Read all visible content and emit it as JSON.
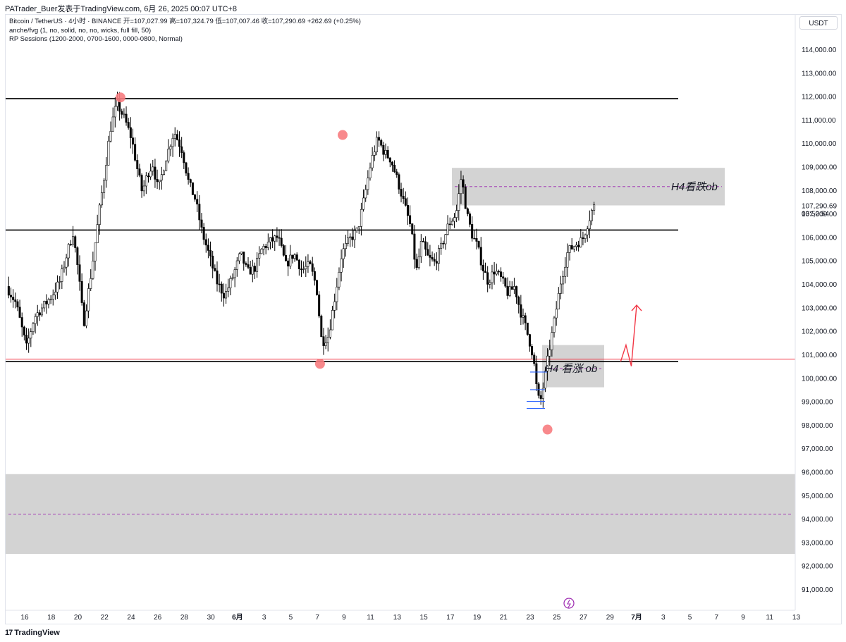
{
  "header": {
    "text": "PATrader_Buer发表于TradingView.com,  6月 26, 2025 00:07 UTC+8"
  },
  "legend": {
    "line1": "Bitcoin / TetherUS · 4小时 · BINANCE  开=107,027.99  高=107,324.79  低=107,007.46  收=107,290.69  +262.69 (+0.25%)",
    "line2": "anche/fvg (1, no, solid, no, no, wicks, full fill, 50)",
    "line3": "RP Sessions (1200-2000, 0700-1600, 0000-0800, Normal)"
  },
  "currency": "USDT",
  "footer": {
    "logo": "17",
    "brand": "TradingView"
  },
  "chart_data": {
    "type": "candlestick",
    "symbol": "Bitcoin / TetherUS",
    "timeframe": "4小时",
    "exchange": "BINANCE",
    "ohlc_last": {
      "open": 107027.99,
      "high": 107324.79,
      "low": 107007.46,
      "close": 107290.69,
      "change": 262.69,
      "change_pct": 0.25
    },
    "ylim": [
      90300,
      115100
    ],
    "yticks": [
      91000,
      92000,
      93000,
      94000,
      95000,
      96000,
      97000,
      98000,
      99000,
      100000,
      101000,
      102000,
      103000,
      104000,
      105000,
      106000,
      107000,
      108000,
      109000,
      110000,
      111000,
      112000,
      113000,
      114000
    ],
    "ytick_labels": [
      "91,000.00",
      "92,000.00",
      "93,000.00",
      "94,000.00",
      "95,000.00",
      "96,000.00",
      "97,000.00",
      "98,000.00",
      "99,000.00",
      "100,000.00",
      "101,000.00",
      "102,000.00",
      "103,000.00",
      "104,000.00",
      "105,000.00",
      "106,000.00",
      "107,000.00",
      "108,000.00",
      "109,000.00",
      "110,000.00",
      "111,000.00",
      "112,000.00",
      "113,000.00",
      "114,000.00"
    ],
    "xticks": [
      {
        "label": "16",
        "day": 0
      },
      {
        "label": "18",
        "day": 2
      },
      {
        "label": "20",
        "day": 4
      },
      {
        "label": "22",
        "day": 6
      },
      {
        "label": "24",
        "day": 8
      },
      {
        "label": "26",
        "day": 10
      },
      {
        "label": "28",
        "day": 12
      },
      {
        "label": "30",
        "day": 14
      },
      {
        "label": "6月",
        "day": 16
      },
      {
        "label": "3",
        "day": 18
      },
      {
        "label": "5",
        "day": 20
      },
      {
        "label": "7",
        "day": 22
      },
      {
        "label": "9",
        "day": 24
      },
      {
        "label": "11",
        "day": 26
      },
      {
        "label": "13",
        "day": 28
      },
      {
        "label": "15",
        "day": 30
      },
      {
        "label": "17",
        "day": 32
      },
      {
        "label": "19",
        "day": 34
      },
      {
        "label": "21",
        "day": 36
      },
      {
        "label": "23",
        "day": 38
      },
      {
        "label": "25",
        "day": 40
      },
      {
        "label": "27",
        "day": 42
      },
      {
        "label": "29",
        "day": 44
      },
      {
        "label": "7月",
        "day": 46
      },
      {
        "label": "3",
        "day": 48
      },
      {
        "label": "5",
        "day": 50
      },
      {
        "label": "7",
        "day": 52
      },
      {
        "label": "9",
        "day": 54
      },
      {
        "label": "11",
        "day": 56
      },
      {
        "label": "13",
        "day": 58
      }
    ],
    "price_path": [
      [
        -1.2,
        103900
      ],
      [
        -0.5,
        103200
      ],
      [
        0.3,
        101300
      ],
      [
        0.9,
        102600
      ],
      [
        1.5,
        103000
      ],
      [
        2.2,
        103500
      ],
      [
        2.8,
        104100
      ],
      [
        3.4,
        105400
      ],
      [
        3.8,
        106200
      ],
      [
        4.2,
        104500
      ],
      [
        4.6,
        102300
      ],
      [
        5.2,
        104600
      ],
      [
        5.8,
        107200
      ],
      [
        6.2,
        108800
      ],
      [
        6.6,
        110600
      ],
      [
        7.1,
        111700
      ],
      [
        7.7,
        111000
      ],
      [
        8.2,
        110200
      ],
      [
        8.6,
        109000
      ],
      [
        9.0,
        107900
      ],
      [
        9.4,
        108700
      ],
      [
        9.8,
        109100
      ],
      [
        10.2,
        108000
      ],
      [
        10.8,
        109400
      ],
      [
        11.4,
        110500
      ],
      [
        12.0,
        109700
      ],
      [
        12.5,
        108300
      ],
      [
        13.0,
        107600
      ],
      [
        13.5,
        106200
      ],
      [
        14.0,
        105300
      ],
      [
        14.6,
        104100
      ],
      [
        15.2,
        103500
      ],
      [
        15.8,
        104300
      ],
      [
        16.4,
        105300
      ],
      [
        16.9,
        104500
      ],
      [
        17.5,
        104700
      ],
      [
        18.0,
        105500
      ],
      [
        18.6,
        105800
      ],
      [
        19.2,
        106000
      ],
      [
        19.8,
        104800
      ],
      [
        20.4,
        105300
      ],
      [
        21.0,
        104600
      ],
      [
        21.6,
        104800
      ],
      [
        22.1,
        103900
      ],
      [
        22.5,
        101500
      ],
      [
        23.0,
        101800
      ],
      [
        23.5,
        103500
      ],
      [
        24.0,
        105300
      ],
      [
        24.6,
        105900
      ],
      [
        25.2,
        106300
      ],
      [
        25.7,
        107700
      ],
      [
        26.2,
        109200
      ],
      [
        26.7,
        110200
      ],
      [
        27.2,
        109600
      ],
      [
        27.7,
        109300
      ],
      [
        28.2,
        108400
      ],
      [
        28.8,
        107200
      ],
      [
        29.2,
        106400
      ],
      [
        29.6,
        104500
      ],
      [
        30.0,
        105800
      ],
      [
        30.5,
        105100
      ],
      [
        31.0,
        104900
      ],
      [
        31.5,
        105600
      ],
      [
        32.0,
        106500
      ],
      [
        32.6,
        107000
      ],
      [
        33.0,
        108600
      ],
      [
        33.4,
        107000
      ],
      [
        33.8,
        106100
      ],
      [
        34.2,
        105600
      ],
      [
        34.6,
        104700
      ],
      [
        35.0,
        104100
      ],
      [
        35.5,
        104600
      ],
      [
        36.0,
        104200
      ],
      [
        36.5,
        103600
      ],
      [
        37.0,
        103900
      ],
      [
        37.4,
        102900
      ],
      [
        37.8,
        102200
      ],
      [
        38.1,
        101600
      ],
      [
        38.4,
        100900
      ],
      [
        38.7,
        99300
      ],
      [
        38.9,
        98900
      ],
      [
        39.2,
        99800
      ],
      [
        39.6,
        101200
      ],
      [
        40.0,
        102500
      ],
      [
        40.5,
        104200
      ],
      [
        41.0,
        105400
      ],
      [
        41.6,
        105700
      ],
      [
        42.1,
        105900
      ],
      [
        42.5,
        106600
      ],
      [
        42.9,
        107290
      ]
    ],
    "highlights": [
      {
        "day": 7.2,
        "price": 111950
      },
      {
        "day": 23.9,
        "price": 110350
      },
      {
        "day": 22.2,
        "price": 100600
      },
      {
        "day": 39.3,
        "price": 97800
      }
    ],
    "levels": [
      {
        "price": 111900,
        "color": "#000000"
      },
      {
        "price": 106300,
        "color": "#000000"
      },
      {
        "price": 100700,
        "color": "#000000"
      },
      {
        "price": 100800,
        "color": "#f23645"
      }
    ],
    "zones": [
      {
        "top": 108950,
        "bottom": 107350,
        "mid": 108150,
        "label": "H4看跌ob"
      },
      {
        "top": 101400,
        "bottom": 99600,
        "mid": 100400,
        "label": "H4 看涨 ob"
      },
      {
        "top": 95900,
        "bottom": 92500,
        "mid": 94200,
        "label": ""
      }
    ],
    "last_price_label": "107,290.69",
    "countdown_label": "03:52:54",
    "projection": [
      [
        44.8,
        100700
      ],
      [
        45.2,
        101400
      ],
      [
        45.6,
        100500
      ],
      [
        46.0,
        103100
      ]
    ]
  }
}
